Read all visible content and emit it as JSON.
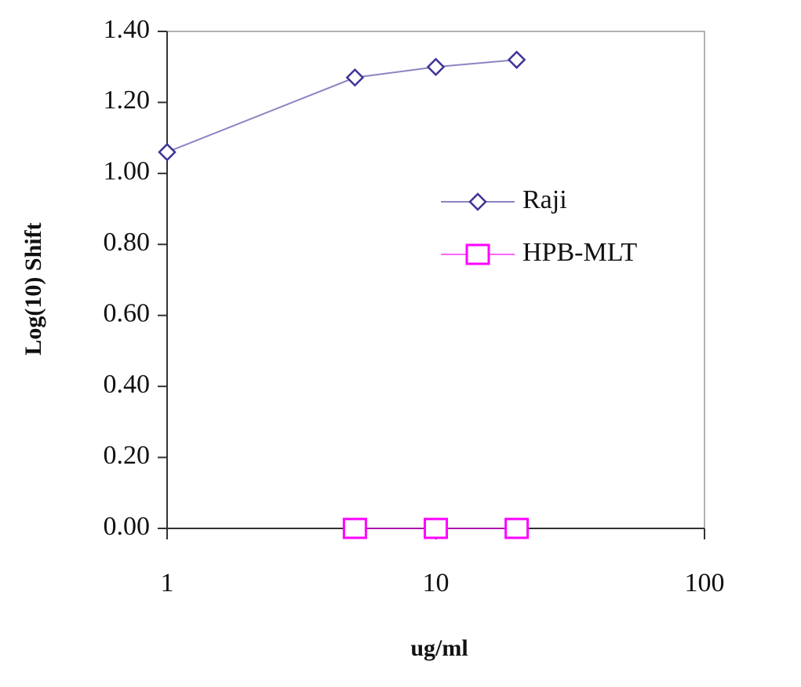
{
  "chart_data": {
    "type": "line",
    "x_label": "ug/ml",
    "y_label": "Log(10) Shift",
    "xscale": "log",
    "xlim": [
      1,
      100
    ],
    "xticks": [
      1,
      10,
      100
    ],
    "ylim": [
      0,
      1.4
    ],
    "yticks": [
      {
        "value": 0,
        "label": "0.00"
      },
      {
        "value": 0.2,
        "label": "0.20"
      },
      {
        "value": 0.4,
        "label": "0.40"
      },
      {
        "value": 0.6,
        "label": "0.60"
      },
      {
        "value": 0.8,
        "label": "0.80"
      },
      {
        "value": 1.0,
        "label": "1.00"
      },
      {
        "value": 1.2,
        "label": "1.20"
      },
      {
        "value": 1.4,
        "label": "1.40"
      }
    ],
    "grid": false,
    "legend": "upper right",
    "series": [
      {
        "name": "Raji",
        "color": "#3d3399",
        "marker": "diamond",
        "x": [
          1,
          5,
          10,
          20
        ],
        "values": [
          1.06,
          1.27,
          1.3,
          1.32
        ]
      },
      {
        "name": "HPB-MLT",
        "color": "#ff00ff",
        "marker": "square",
        "x": [
          5,
          10,
          20
        ],
        "values": [
          0,
          0,
          0
        ]
      }
    ]
  }
}
